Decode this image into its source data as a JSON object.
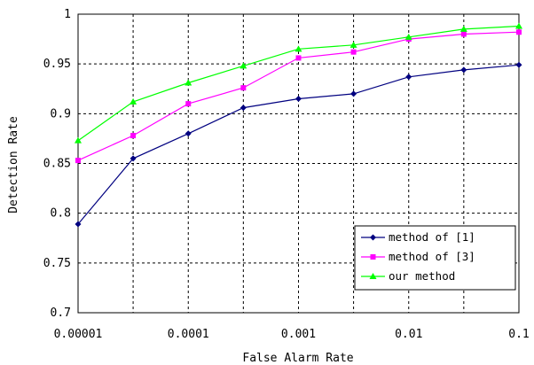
{
  "chart_data": {
    "type": "line",
    "xlabel": "False Alarm Rate",
    "ylabel": "Detection Rate",
    "xscale": "log",
    "x": [
      1e-05,
      3.16e-05,
      0.0001,
      0.000316,
      0.001,
      0.00316,
      0.01,
      0.0316,
      0.1
    ],
    "xticks": [
      1e-05,
      0.0001,
      0.001,
      0.01,
      0.1
    ],
    "xtick_labels": [
      "0.00001",
      "0.0001",
      "0.001",
      "0.01",
      "0.1"
    ],
    "ylim": [
      0.7,
      1
    ],
    "yticks": [
      0.7,
      0.75,
      0.8,
      0.85,
      0.9,
      0.95,
      1
    ],
    "ytick_labels": [
      "0.7",
      "0.75",
      "0.8",
      "0.85",
      "0.9",
      "0.95",
      "1"
    ],
    "grid": true,
    "legend": "bottom-right",
    "series": [
      {
        "name": "method of [1]",
        "color": "#000080",
        "marker": "diamond",
        "values": [
          0.789,
          0.855,
          0.88,
          0.906,
          0.915,
          0.92,
          0.937,
          0.944,
          0.949
        ]
      },
      {
        "name": "method of [3]",
        "color": "#ff00ff",
        "marker": "square",
        "values": [
          0.853,
          0.878,
          0.91,
          0.926,
          0.956,
          0.962,
          0.975,
          0.98,
          0.982
        ]
      },
      {
        "name": "our method",
        "color": "#00ff00",
        "marker": "triangle",
        "values": [
          0.873,
          0.912,
          0.931,
          0.948,
          0.965,
          0.969,
          0.977,
          0.985,
          0.988
        ]
      }
    ]
  }
}
